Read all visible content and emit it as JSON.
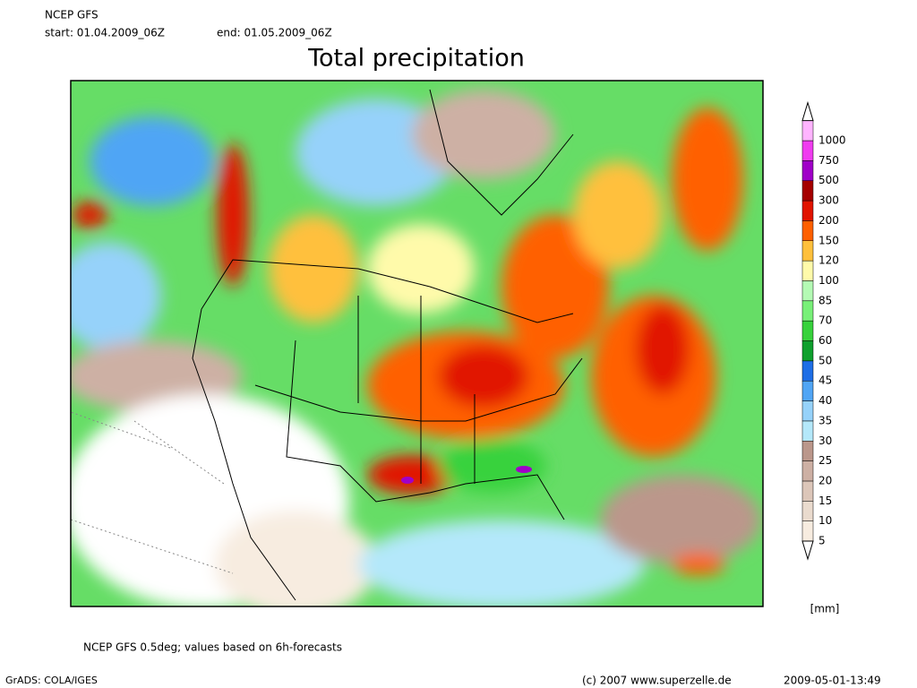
{
  "header": {
    "model": "NCEP GFS",
    "start": "start: 01.04.2009_06Z",
    "end": "end: 01.05.2009_06Z"
  },
  "title": "Total precipitation",
  "legend": {
    "unit": "[mm]",
    "levels": [
      {
        "value": 5,
        "color": "#f7ece0"
      },
      {
        "value": 10,
        "color": "#eadbce"
      },
      {
        "value": 15,
        "color": "#dcc6b9"
      },
      {
        "value": 20,
        "color": "#cdb0a4"
      },
      {
        "value": 25,
        "color": "#bb978b"
      },
      {
        "value": 30,
        "color": "#b4e8fa"
      },
      {
        "value": 35,
        "color": "#96d2fa"
      },
      {
        "value": 40,
        "color": "#50a5f5"
      },
      {
        "value": 45,
        "color": "#1e6ee6"
      },
      {
        "value": 50,
        "color": "#0fa02d"
      },
      {
        "value": 60,
        "color": "#37d23c"
      },
      {
        "value": 70,
        "color": "#78f078"
      },
      {
        "value": 85,
        "color": "#b4fab4"
      },
      {
        "value": 100,
        "color": "#fffaaa"
      },
      {
        "value": 120,
        "color": "#ffc03c"
      },
      {
        "value": 150,
        "color": "#ff6000"
      },
      {
        "value": 200,
        "color": "#e11400"
      },
      {
        "value": 300,
        "color": "#a50000"
      },
      {
        "value": 500,
        "color": "#a000c8"
      },
      {
        "value": 750,
        "color": "#f03cf0"
      },
      {
        "value": 1000,
        "color": "#ffb4ff"
      }
    ]
  },
  "footer": {
    "note": "NCEP GFS 0.5deg; values based on 6h-forecasts",
    "software": "GrADS: COLA/IGES",
    "copyright": "(c) 2007 www.superzelle.de",
    "timestamp": "2009-05-01-13:49"
  }
}
